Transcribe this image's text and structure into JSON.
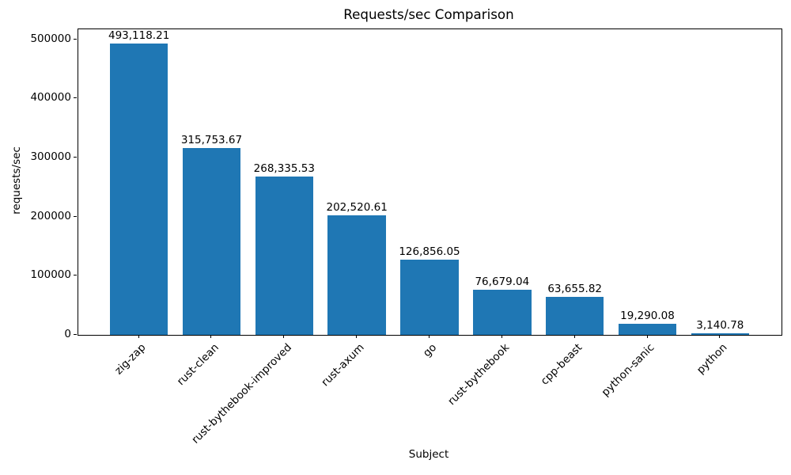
{
  "chart_data": {
    "type": "bar",
    "title": "Requests/sec Comparison",
    "xlabel": "Subject",
    "ylabel": "requests/sec",
    "categories": [
      "zig-zap",
      "rust-clean",
      "rust-bythebook-improved",
      "rust-axum",
      "go",
      "rust-bythebook",
      "cpp-beast",
      "python-sanic",
      "python"
    ],
    "values": [
      493118.21,
      315753.67,
      268335.53,
      202520.61,
      126856.05,
      76679.04,
      63655.82,
      19290.08,
      3140.78
    ],
    "value_labels": [
      "493,118.21",
      "315,753.67",
      "268,335.53",
      "202,520.61",
      "126,856.05",
      "76,679.04",
      "63,655.82",
      "19,290.08",
      "3,140.78"
    ],
    "y_tick_values": [
      0,
      100000,
      200000,
      300000,
      400000,
      500000
    ],
    "y_tick_labels": [
      "0",
      "100000",
      "200000",
      "300000",
      "400000",
      "500000"
    ],
    "ylim": [
      0,
      517774
    ],
    "bar_color": "#1f77b4",
    "text_color": "#000000",
    "grid": false,
    "legend_position": "none"
  }
}
